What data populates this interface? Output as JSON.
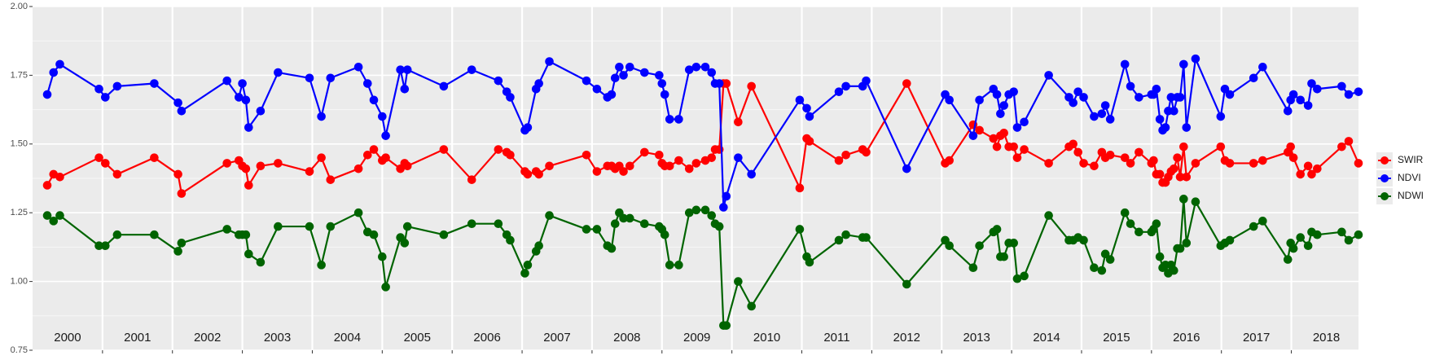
{
  "chart_data": {
    "type": "line",
    "year_labels": [
      "2000",
      "2001",
      "2002",
      "2003",
      "2004",
      "2005",
      "2006",
      "2007",
      "2008",
      "2009",
      "2010",
      "2011",
      "2012",
      "2013",
      "2014",
      "2015",
      "2016",
      "2017",
      "2018"
    ],
    "x": [
      2000.21,
      2000.3,
      2000.39,
      2000.95,
      2001.04,
      2001.21,
      2001.74,
      2002.08,
      2002.13,
      2002.78,
      2002.95,
      2003.0,
      2003.05,
      2003.09,
      2003.26,
      2003.51,
      2003.96,
      2004.13,
      2004.26,
      2004.66,
      2004.79,
      2004.88,
      2005.0,
      2005.05,
      2005.26,
      2005.32,
      2005.36,
      2005.88,
      2006.28,
      2006.66,
      2006.78,
      2006.83,
      2007.04,
      2007.08,
      2007.2,
      2007.24,
      2007.39,
      2007.92,
      2008.07,
      2008.22,
      2008.28,
      2008.33,
      2008.39,
      2008.45,
      2008.54,
      2008.75,
      2008.96,
      2009.0,
      2009.04,
      2009.11,
      2009.24,
      2009.39,
      2009.49,
      2009.62,
      2009.71,
      2009.76,
      2009.82,
      2009.88,
      2009.92,
      2010.09,
      2010.28,
      2010.97,
      2011.07,
      2011.11,
      2011.53,
      2011.63,
      2011.87,
      2011.92,
      2012.5,
      2013.05,
      2013.11,
      2013.45,
      2013.54,
      2013.74,
      2013.79,
      2013.84,
      2013.89,
      2013.96,
      2014.03,
      2014.08,
      2014.18,
      2014.53,
      2014.82,
      2014.88,
      2014.95,
      2015.03,
      2015.18,
      2015.29,
      2015.34,
      2015.41,
      2015.62,
      2015.7,
      2015.82,
      2016.0,
      2016.03,
      2016.07,
      2016.12,
      2016.16,
      2016.2,
      2016.24,
      2016.28,
      2016.32,
      2016.37,
      2016.41,
      2016.46,
      2016.5,
      2016.63,
      2016.99,
      2017.05,
      2017.12,
      2017.46,
      2017.59,
      2017.95,
      2017.99,
      2018.03,
      2018.13,
      2018.24,
      2018.29,
      2018.37,
      2018.72,
      2018.82,
      2018.96
    ],
    "series": [
      {
        "name": "SWIR",
        "color": "#ff0000",
        "values": [
          1.35,
          1.39,
          1.38,
          1.45,
          1.43,
          1.39,
          1.45,
          1.39,
          1.32,
          1.43,
          1.44,
          1.42,
          1.41,
          1.35,
          1.42,
          1.43,
          1.4,
          1.45,
          1.37,
          1.41,
          1.46,
          1.48,
          1.44,
          1.45,
          1.41,
          1.43,
          1.42,
          1.48,
          1.37,
          1.48,
          1.47,
          1.46,
          1.4,
          1.39,
          1.4,
          1.39,
          1.42,
          1.46,
          1.4,
          1.42,
          1.42,
          1.41,
          1.42,
          1.4,
          1.42,
          1.47,
          1.46,
          1.43,
          1.42,
          1.42,
          1.44,
          1.41,
          1.43,
          1.44,
          1.45,
          1.48,
          1.48,
          1.72,
          1.72,
          1.58,
          1.71,
          1.34,
          1.52,
          1.51,
          1.44,
          1.46,
          1.48,
          1.47,
          1.72,
          1.43,
          1.44,
          1.57,
          1.55,
          1.52,
          1.49,
          1.53,
          1.54,
          1.49,
          1.49,
          1.45,
          1.48,
          1.43,
          1.49,
          1.5,
          1.47,
          1.43,
          1.42,
          1.47,
          1.45,
          1.46,
          1.45,
          1.43,
          1.47,
          1.43,
          1.44,
          1.39,
          1.39,
          1.36,
          1.36,
          1.38,
          1.4,
          1.41,
          1.45,
          1.38,
          1.49,
          1.38,
          1.43,
          1.49,
          1.44,
          1.43,
          1.43,
          1.44,
          1.47,
          1.49,
          1.45,
          1.39,
          1.42,
          1.39,
          1.41,
          1.49,
          1.51,
          1.43
        ]
      },
      {
        "name": "NDVI",
        "color": "#0000ff",
        "values": [
          1.68,
          1.76,
          1.79,
          1.7,
          1.67,
          1.71,
          1.72,
          1.65,
          1.62,
          1.73,
          1.67,
          1.72,
          1.66,
          1.56,
          1.62,
          1.76,
          1.74,
          1.6,
          1.74,
          1.78,
          1.72,
          1.66,
          1.6,
          1.53,
          1.77,
          1.7,
          1.77,
          1.71,
          1.77,
          1.73,
          1.69,
          1.67,
          1.55,
          1.56,
          1.7,
          1.72,
          1.8,
          1.73,
          1.7,
          1.67,
          1.68,
          1.74,
          1.78,
          1.75,
          1.78,
          1.76,
          1.75,
          1.72,
          1.68,
          1.59,
          1.59,
          1.77,
          1.78,
          1.78,
          1.76,
          1.72,
          1.72,
          1.27,
          1.31,
          1.45,
          1.39,
          1.66,
          1.63,
          1.6,
          1.69,
          1.71,
          1.71,
          1.73,
          1.41,
          1.68,
          1.66,
          1.53,
          1.66,
          1.7,
          1.68,
          1.61,
          1.64,
          1.68,
          1.69,
          1.56,
          1.58,
          1.75,
          1.67,
          1.65,
          1.69,
          1.67,
          1.6,
          1.61,
          1.64,
          1.59,
          1.79,
          1.71,
          1.67,
          1.68,
          1.68,
          1.7,
          1.59,
          1.55,
          1.56,
          1.62,
          1.67,
          1.62,
          1.67,
          1.67,
          1.79,
          1.56,
          1.81,
          1.6,
          1.7,
          1.68,
          1.74,
          1.78,
          1.62,
          1.66,
          1.68,
          1.66,
          1.64,
          1.72,
          1.7,
          1.71,
          1.68,
          1.69
        ]
      },
      {
        "name": "NDWI",
        "color": "#006400",
        "values": [
          1.24,
          1.22,
          1.24,
          1.13,
          1.13,
          1.17,
          1.17,
          1.11,
          1.14,
          1.19,
          1.17,
          1.17,
          1.17,
          1.1,
          1.07,
          1.2,
          1.2,
          1.06,
          1.2,
          1.25,
          1.18,
          1.17,
          1.09,
          0.98,
          1.16,
          1.14,
          1.2,
          1.17,
          1.21,
          1.21,
          1.17,
          1.15,
          1.03,
          1.06,
          1.11,
          1.13,
          1.24,
          1.19,
          1.19,
          1.13,
          1.12,
          1.21,
          1.25,
          1.23,
          1.23,
          1.21,
          1.2,
          1.19,
          1.17,
          1.06,
          1.06,
          1.25,
          1.26,
          1.26,
          1.24,
          1.21,
          1.2,
          0.84,
          0.84,
          1.0,
          0.91,
          1.19,
          1.09,
          1.07,
          1.15,
          1.17,
          1.16,
          1.16,
          0.99,
          1.15,
          1.13,
          1.05,
          1.13,
          1.18,
          1.19,
          1.09,
          1.09,
          1.14,
          1.14,
          1.01,
          1.02,
          1.24,
          1.15,
          1.15,
          1.16,
          1.15,
          1.05,
          1.04,
          1.1,
          1.08,
          1.25,
          1.21,
          1.18,
          1.18,
          1.19,
          1.21,
          1.09,
          1.05,
          1.06,
          1.03,
          1.06,
          1.04,
          1.12,
          1.12,
          1.3,
          1.14,
          1.29,
          1.13,
          1.14,
          1.15,
          1.2,
          1.22,
          1.08,
          1.14,
          1.12,
          1.16,
          1.13,
          1.18,
          1.17,
          1.18,
          1.15,
          1.17
        ]
      }
    ],
    "xlim": [
      2000,
      2018.96
    ],
    "xticks": [
      2001,
      2002,
      2003,
      2004,
      2005,
      2006,
      2007,
      2008,
      2009,
      2010,
      2011,
      2012,
      2013,
      2014,
      2015,
      2016,
      2017,
      2018
    ],
    "ylim": [
      0.75,
      2.0
    ],
    "yticks": [
      0.75,
      {
        "value": 1,
        "label": "1.00"
      },
      1.25,
      {
        "value": 1.5,
        "label": "1.50"
      },
      1.75,
      {
        "value": 2,
        "label": "2.00"
      }
    ],
    "grid": true,
    "legend": "right"
  }
}
